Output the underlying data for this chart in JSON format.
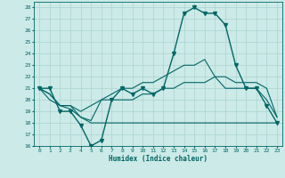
{
  "xlabel": "Humidex (Indice chaleur)",
  "xlim": [
    -0.5,
    23.5
  ],
  "ylim": [
    16,
    28.5
  ],
  "yticks": [
    16,
    17,
    18,
    19,
    20,
    21,
    22,
    23,
    24,
    25,
    26,
    27,
    28
  ],
  "xticks": [
    0,
    1,
    2,
    3,
    4,
    5,
    6,
    7,
    8,
    9,
    10,
    11,
    12,
    13,
    14,
    15,
    16,
    17,
    18,
    19,
    20,
    21,
    22,
    23
  ],
  "bg_color": "#cceae7",
  "grid_color": "#aad4d0",
  "line_color": "#006666",
  "series": [
    {
      "x": [
        0,
        1,
        2,
        3,
        4,
        5,
        6,
        7,
        8,
        9,
        10,
        11,
        12,
        13,
        14,
        15,
        16,
        17,
        18,
        19,
        20,
        21,
        22,
        23
      ],
      "y": [
        21,
        21,
        19,
        19,
        17.8,
        16,
        16.5,
        20,
        21,
        20.5,
        21,
        20.5,
        21,
        24,
        27.5,
        28,
        27.5,
        27.5,
        26.5,
        23,
        21,
        21,
        19.5,
        18
      ],
      "marker": "v",
      "lw": 1.0
    },
    {
      "x": [
        0,
        1,
        2,
        3,
        4,
        5,
        6,
        7,
        8,
        9,
        10,
        11,
        12,
        13,
        14,
        15,
        16,
        17,
        18,
        19,
        20,
        21,
        22,
        23
      ],
      "y": [
        21,
        20.5,
        19.5,
        19.5,
        18.5,
        18,
        18,
        18,
        18,
        18,
        18,
        18,
        18,
        18,
        18,
        18,
        18,
        18,
        18,
        18,
        18,
        18,
        18,
        18
      ],
      "marker": null,
      "lw": 0.8
    },
    {
      "x": [
        0,
        1,
        2,
        3,
        4,
        5,
        6,
        7,
        8,
        9,
        10,
        11,
        12,
        13,
        14,
        15,
        16,
        17,
        18,
        19,
        20,
        21,
        22,
        23
      ],
      "y": [
        21,
        20.5,
        19.5,
        19.5,
        19,
        19.5,
        20,
        20,
        20,
        20,
        20.5,
        20.5,
        21,
        21,
        21.5,
        21.5,
        21.5,
        22,
        22,
        21.5,
        21.5,
        21.5,
        21,
        18.5
      ],
      "marker": null,
      "lw": 0.8
    },
    {
      "x": [
        0,
        1,
        2,
        3,
        4,
        5,
        6,
        7,
        8,
        9,
        10,
        11,
        12,
        13,
        14,
        15,
        16,
        17,
        18,
        19,
        20,
        21,
        22,
        23
      ],
      "y": [
        21,
        20,
        19.5,
        19.2,
        18.5,
        18.2,
        20,
        20.5,
        21,
        21,
        21.5,
        21.5,
        22,
        22.5,
        23,
        23,
        23.5,
        22,
        21,
        21,
        21,
        21,
        20,
        18.5
      ],
      "marker": null,
      "lw": 0.8
    }
  ]
}
